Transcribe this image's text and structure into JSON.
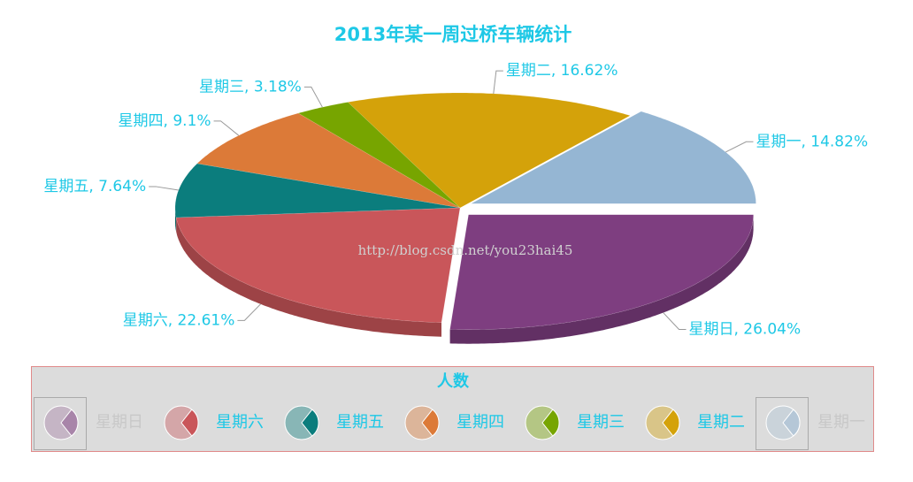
{
  "chart_data": {
    "type": "pie3d",
    "title": "2013年某一周过桥车辆统计",
    "categories": [
      "星期一",
      "星期二",
      "星期三",
      "星期四",
      "星期五",
      "星期六",
      "星期日"
    ],
    "values": [
      14.82,
      16.62,
      3.18,
      9.1,
      7.64,
      22.61,
      26.04
    ],
    "value_labels": [
      "星期一, 14.82%",
      "星期二, 16.62%",
      "星期三, 3.18%",
      "星期四, 9.1%",
      "星期五, 7.64%",
      "星期六, 22.61%",
      "星期日, 26.04%"
    ],
    "colors": [
      "#95b6d3",
      "#d4a20a",
      "#77a500",
      "#dc7a38",
      "#0b7d7d",
      "#c9565a",
      "#7e3e80"
    ],
    "selected": [
      true,
      false,
      false,
      false,
      false,
      false,
      true
    ],
    "legend_title": "人数",
    "legend_position": "bottom",
    "watermark": "http://blog.csdn.net/you23hai45"
  }
}
